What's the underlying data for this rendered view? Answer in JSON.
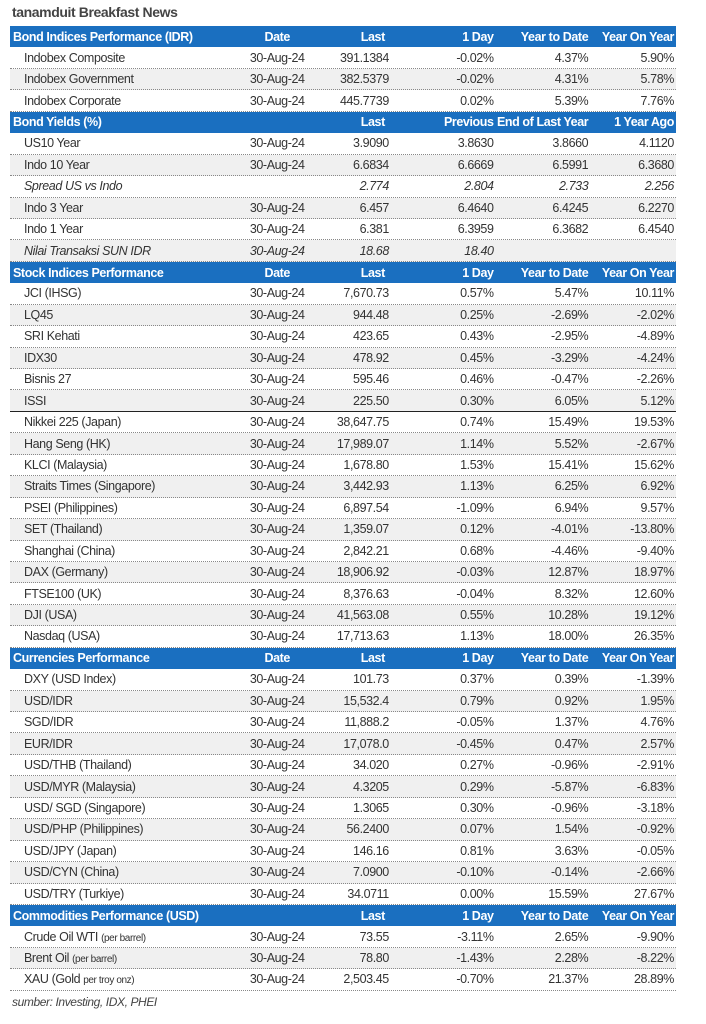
{
  "title": "tanamduit Breakfast News",
  "source": "sumber: Investing, IDX, PHEI",
  "sections": [
    {
      "header": [
        "Bond Indices Performance (IDR)",
        "Date",
        "Last",
        "1 Day",
        "Year to Date",
        "Year On Year"
      ],
      "rows": [
        {
          "cells": [
            "Indobex Composite",
            "30-Aug-24",
            "391.1384",
            "-0.02%",
            "4.37%",
            "5.90%"
          ]
        },
        {
          "cells": [
            "Indobex Government",
            "30-Aug-24",
            "382.5379",
            "-0.02%",
            "4.31%",
            "5.78%"
          ]
        },
        {
          "cells": [
            "Indobex Corporate",
            "30-Aug-24",
            "445.7739",
            "0.02%",
            "5.39%",
            "7.76%"
          ]
        }
      ]
    },
    {
      "header": [
        "Bond Yields (%)",
        "",
        "Last",
        "Previous",
        "End of Last Year",
        "1 Year Ago"
      ],
      "rows": [
        {
          "cells": [
            "US10 Year",
            "30-Aug-24",
            "3.9090",
            "3.8630",
            "3.8660",
            "4.1120"
          ]
        },
        {
          "cells": [
            "Indo 10 Year",
            "30-Aug-24",
            "6.6834",
            "6.6669",
            "6.5991",
            "6.3680"
          ]
        },
        {
          "cells": [
            "Spread US vs Indo",
            "",
            "2.774",
            "2.804",
            "2.733",
            "2.256"
          ],
          "italic": true
        },
        {
          "cells": [
            "Indo 3 Year",
            "30-Aug-24",
            "6.457",
            "6.4640",
            "6.4245",
            "6.2270"
          ]
        },
        {
          "cells": [
            "Indo 1 Year",
            "30-Aug-24",
            "6.381",
            "6.3959",
            "6.3682",
            "6.4540"
          ]
        },
        {
          "cells": [
            "Nilai Transaksi SUN IDR",
            "30-Aug-24",
            "18.68",
            "18.40",
            "",
            ""
          ],
          "italic": true
        }
      ]
    },
    {
      "header": [
        "Stock Indices Performance",
        "Date",
        "Last",
        "1 Day",
        "Year to Date",
        "Year On Year"
      ],
      "rows": [
        {
          "cells": [
            "JCI (IHSG)",
            "30-Aug-24",
            "7,670.73",
            "0.57%",
            "5.47%",
            "10.11%"
          ]
        },
        {
          "cells": [
            "LQ45",
            "30-Aug-24",
            "944.48",
            "0.25%",
            "-2.69%",
            "-2.02%"
          ]
        },
        {
          "cells": [
            "SRI Kehati",
            "30-Aug-24",
            "423.65",
            "0.43%",
            "-2.95%",
            "-4.89%"
          ]
        },
        {
          "cells": [
            "IDX30",
            "30-Aug-24",
            "478.92",
            "0.45%",
            "-3.29%",
            "-4.24%"
          ]
        },
        {
          "cells": [
            "Bisnis 27",
            "30-Aug-24",
            "595.46",
            "0.46%",
            "-0.47%",
            "-2.26%"
          ]
        },
        {
          "cells": [
            "ISSI",
            "30-Aug-24",
            "225.50",
            "0.30%",
            "6.05%",
            "5.12%"
          ],
          "solid": true
        },
        {
          "cells": [
            "Nikkei 225 (Japan)",
            "30-Aug-24",
            "38,647.75",
            "0.74%",
            "15.49%",
            "19.53%"
          ]
        },
        {
          "cells": [
            "Hang Seng (HK)",
            "30-Aug-24",
            "17,989.07",
            "1.14%",
            "5.52%",
            "-2.67%"
          ]
        },
        {
          "cells": [
            "KLCI (Malaysia)",
            "30-Aug-24",
            "1,678.80",
            "1.53%",
            "15.41%",
            "15.62%"
          ]
        },
        {
          "cells": [
            "Straits Times (Singapore)",
            "30-Aug-24",
            "3,442.93",
            "1.13%",
            "6.25%",
            "6.92%"
          ]
        },
        {
          "cells": [
            "PSEI (Philippines)",
            "30-Aug-24",
            "6,897.54",
            "-1.09%",
            "6.94%",
            "9.57%"
          ]
        },
        {
          "cells": [
            "SET (Thailand)",
            "30-Aug-24",
            "1,359.07",
            "0.12%",
            "-4.01%",
            "-13.80%"
          ]
        },
        {
          "cells": [
            "Shanghai (China)",
            "30-Aug-24",
            "2,842.21",
            "0.68%",
            "-4.46%",
            "-9.40%"
          ]
        },
        {
          "cells": [
            "DAX (Germany)",
            "30-Aug-24",
            "18,906.92",
            "-0.03%",
            "12.87%",
            "18.97%"
          ]
        },
        {
          "cells": [
            "FTSE100 (UK)",
            "30-Aug-24",
            "8,376.63",
            "-0.04%",
            "8.32%",
            "12.60%"
          ]
        },
        {
          "cells": [
            "DJI (USA)",
            "30-Aug-24",
            "41,563.08",
            "0.55%",
            "10.28%",
            "19.12%"
          ]
        },
        {
          "cells": [
            "Nasdaq (USA)",
            "30-Aug-24",
            "17,713.63",
            "1.13%",
            "18.00%",
            "26.35%"
          ]
        }
      ]
    },
    {
      "header": [
        "Currencies Performance",
        "Date",
        "Last",
        "1 Day",
        "Year to Date",
        "Year On Year"
      ],
      "rows": [
        {
          "cells": [
            "DXY (USD Index)",
            "30-Aug-24",
            "101.73",
            "0.37%",
            "0.39%",
            "-1.39%"
          ]
        },
        {
          "cells": [
            "USD/IDR",
            "30-Aug-24",
            "15,532.4",
            "0.79%",
            "0.92%",
            "1.95%"
          ]
        },
        {
          "cells": [
            "SGD/IDR",
            "30-Aug-24",
            "11,888.2",
            "-0.05%",
            "1.37%",
            "4.76%"
          ]
        },
        {
          "cells": [
            "EUR/IDR",
            "30-Aug-24",
            "17,078.0",
            "-0.45%",
            "0.47%",
            "2.57%"
          ]
        },
        {
          "cells": [
            "USD/THB (Thailand)",
            "30-Aug-24",
            "34.020",
            "0.27%",
            "-0.96%",
            "-2.91%"
          ]
        },
        {
          "cells": [
            "USD/MYR (Malaysia)",
            "30-Aug-24",
            "4.3205",
            "0.29%",
            "-5.87%",
            "-6.83%"
          ]
        },
        {
          "cells": [
            "USD/ SGD (Singapore)",
            "30-Aug-24",
            "1.3065",
            "0.30%",
            "-0.96%",
            "-3.18%"
          ]
        },
        {
          "cells": [
            "USD/PHP (Philippines)",
            "30-Aug-24",
            "56.2400",
            "0.07%",
            "1.54%",
            "-0.92%"
          ]
        },
        {
          "cells": [
            "USD/JPY (Japan)",
            "30-Aug-24",
            "146.16",
            "0.81%",
            "3.63%",
            "-0.05%"
          ]
        },
        {
          "cells": [
            "USD/CYN (China)",
            "30-Aug-24",
            "7.0900",
            "-0.10%",
            "-0.14%",
            "-2.66%"
          ]
        },
        {
          "cells": [
            "USD/TRY (Turkiye)",
            "30-Aug-24",
            "34.0711",
            "0.00%",
            "15.59%",
            "27.67%"
          ]
        }
      ]
    },
    {
      "header": [
        "Commodities Performance (USD)",
        "",
        "Last",
        "1 Day",
        "Year to Date",
        "Year On Year"
      ],
      "rows": [
        {
          "cells": [
            "Crude Oil WTI",
            "30-Aug-24",
            "73.55",
            "-3.11%",
            "2.65%",
            "-9.90%"
          ],
          "note": "(per barrel)"
        },
        {
          "cells": [
            "Brent Oil",
            "30-Aug-24",
            "78.80",
            "-1.43%",
            "2.28%",
            "-8.22%"
          ],
          "note": "(per barrel)"
        },
        {
          "cells": [
            "XAU (Gold",
            "30-Aug-24",
            "2,503.45",
            "-0.70%",
            "21.37%",
            "28.89%"
          ],
          "note": "per troy onz)"
        }
      ]
    }
  ],
  "colors": {
    "header_bg": "#1a6fc0",
    "alt_row": "#f0f0f0"
  }
}
